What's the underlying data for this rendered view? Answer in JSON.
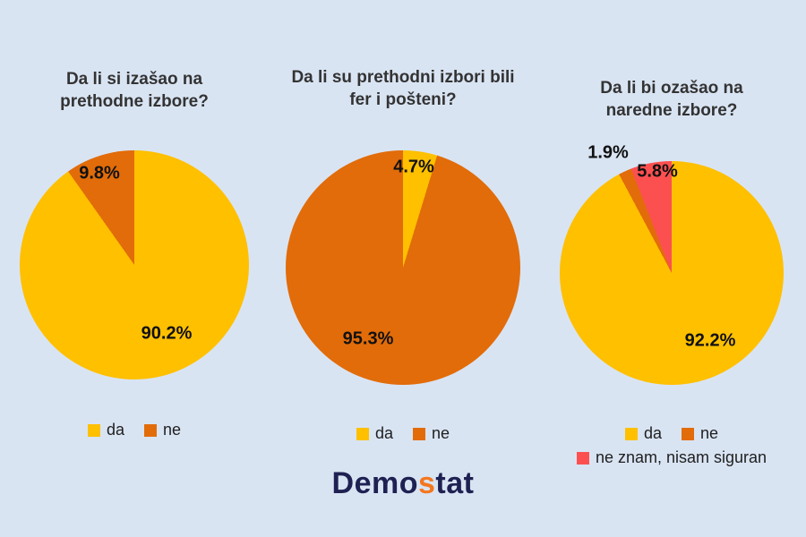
{
  "page": {
    "background_color": "#D9E4F3"
  },
  "chart_data": [
    {
      "type": "pie",
      "title": "Da li si izašao na prethodne izbore?",
      "labels": [
        "da",
        "ne"
      ],
      "values": [
        90.2,
        9.8
      ],
      "value_labels": [
        "90.2%",
        "9.8%"
      ],
      "colors": [
        "#FFC000",
        "#E26C09"
      ],
      "legend_position": "bottom",
      "start_angle_deg": 0,
      "direction": "clockwise"
    },
    {
      "type": "pie",
      "title": "Da li su prethodni izbori bili fer i pošteni?",
      "labels": [
        "da",
        "ne"
      ],
      "values": [
        4.7,
        95.3
      ],
      "value_labels": [
        "4.7%",
        "95.3%"
      ],
      "colors": [
        "#FFC000",
        "#E26C09"
      ],
      "legend_position": "bottom",
      "start_angle_deg": 0,
      "direction": "clockwise"
    },
    {
      "type": "pie",
      "title": "Da li bi ozašao na naredne izbore?",
      "labels": [
        "da",
        "ne",
        "ne znam, nisam siguran"
      ],
      "values": [
        92.2,
        1.9,
        5.8
      ],
      "value_labels": [
        "92.2%",
        "1.9%",
        "5.8%"
      ],
      "colors": [
        "#FFC000",
        "#E26C09",
        "#FC5050"
      ],
      "legend_position": "bottom",
      "start_angle_deg": 0,
      "direction": "clockwise"
    }
  ],
  "footer": {
    "logo": {
      "prefix": "Demo",
      "accent": "s",
      "suffix": "tat",
      "navy_color": "#1E2152",
      "accent_color": "#F4771F"
    }
  }
}
